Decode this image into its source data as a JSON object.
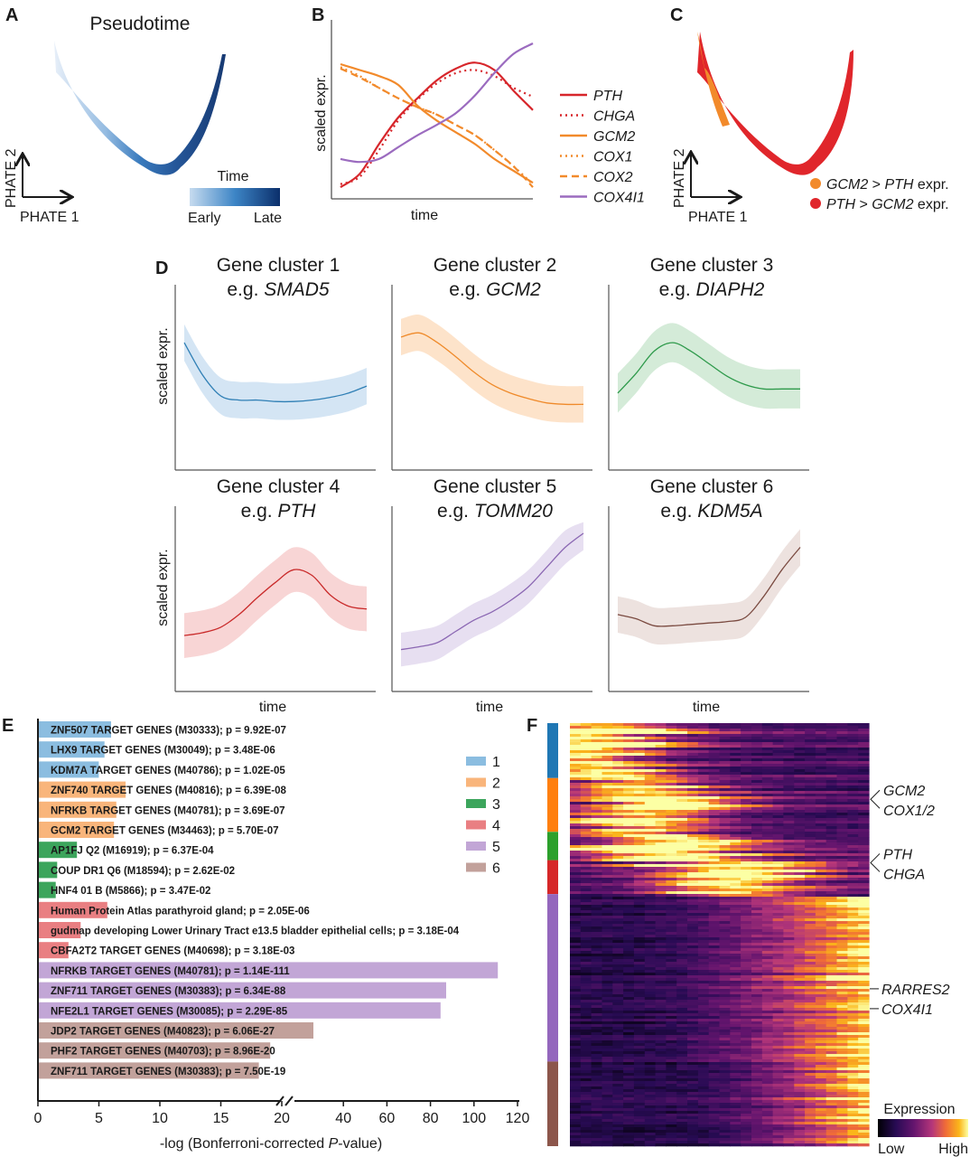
{
  "panels": {
    "A": "A",
    "B": "B",
    "C": "C",
    "D": "D",
    "E": "E",
    "F": "F"
  },
  "chart_data": [
    {
      "id": "A",
      "type": "scatter",
      "title": "Pseudotime",
      "xlabel": "PHATE 1",
      "ylabel": "PHATE 2",
      "colorbar": {
        "title": "Time",
        "low_label": "Early",
        "high_label": "Late",
        "colors": [
          "#c6dbef",
          "#4a8fcf",
          "#08306b"
        ]
      },
      "description": "U-shaped PHATE embedding of cells colored by pseudotime (early left arm, late right arm)"
    },
    {
      "id": "B",
      "type": "line",
      "xlabel": "time",
      "ylabel": "scaled expr.",
      "x": [
        0,
        0.1,
        0.2,
        0.3,
        0.4,
        0.5,
        0.6,
        0.7,
        0.8,
        0.9,
        1.0
      ],
      "ylim": [
        0,
        1
      ],
      "series": [
        {
          "name": "PTH",
          "style": "solid",
          "color": "#d7262b",
          "values": [
            0.03,
            0.12,
            0.32,
            0.5,
            0.63,
            0.75,
            0.83,
            0.87,
            0.82,
            0.68,
            0.55
          ]
        },
        {
          "name": "CHGA",
          "style": "dotted",
          "color": "#d7262b",
          "values": [
            0.05,
            0.1,
            0.28,
            0.48,
            0.62,
            0.73,
            0.8,
            0.82,
            0.78,
            0.7,
            0.64
          ]
        },
        {
          "name": "GCM2",
          "style": "solid",
          "color": "#f28a2b",
          "values": [
            0.86,
            0.82,
            0.78,
            0.72,
            0.58,
            0.48,
            0.4,
            0.32,
            0.22,
            0.14,
            0.06
          ]
        },
        {
          "name": "COX1",
          "style": "dotted",
          "color": "#f28a2b",
          "values": [
            0.84,
            0.78,
            0.7,
            0.63,
            0.57,
            0.52,
            0.45,
            0.38,
            0.28,
            0.17,
            0.05
          ]
        },
        {
          "name": "COX2",
          "style": "dashed",
          "color": "#f28a2b",
          "values": [
            0.83,
            0.77,
            0.7,
            0.63,
            0.57,
            0.52,
            0.45,
            0.38,
            0.28,
            0.17,
            0.03
          ]
        },
        {
          "name": "COX4I1",
          "style": "solid",
          "color": "#9b6bbf",
          "values": [
            0.22,
            0.2,
            0.22,
            0.3,
            0.38,
            0.45,
            0.53,
            0.65,
            0.8,
            0.93,
            1.0
          ]
        }
      ],
      "legend": "right"
    },
    {
      "id": "C",
      "type": "scatter",
      "xlabel": "PHATE 1",
      "ylabel": "PHATE 2",
      "legend": [
        {
          "pre": "GCM2",
          "mid": " > ",
          "gene2": "PTH",
          "post": " expr.",
          "color": "#f28a2b"
        },
        {
          "pre": "PTH",
          "mid": " > ",
          "gene2": "GCM2",
          "post": " expr.",
          "color": "#e0262b"
        }
      ]
    },
    {
      "id": "D",
      "type": "line",
      "xlabel": "time",
      "ylabel": "scaled expr.",
      "x": [
        0,
        0.1,
        0.2,
        0.3,
        0.4,
        0.5,
        0.6,
        0.7,
        0.8,
        0.9,
        1.0
      ],
      "ylim": [
        0,
        1
      ],
      "clusters": [
        {
          "title": "Gene cluster 1",
          "example": "SMAD5",
          "color": "#2f7fb5",
          "fill": "#cfe2f3",
          "values": [
            0.78,
            0.55,
            0.4,
            0.37,
            0.37,
            0.36,
            0.36,
            0.37,
            0.39,
            0.42,
            0.47
          ],
          "band": 0.13
        },
        {
          "title": "Gene cluster 2",
          "example": "GCM2",
          "color": "#ef8a2a",
          "fill": "#fde0c4",
          "values": [
            0.82,
            0.85,
            0.78,
            0.68,
            0.57,
            0.48,
            0.42,
            0.38,
            0.35,
            0.34,
            0.34
          ],
          "band": 0.13
        },
        {
          "title": "Gene cluster 3",
          "example": "DIAPH2",
          "color": "#2e9a4b",
          "fill": "#cfe9d4",
          "values": [
            0.42,
            0.56,
            0.72,
            0.78,
            0.72,
            0.63,
            0.54,
            0.48,
            0.45,
            0.45,
            0.45
          ],
          "band": 0.14
        },
        {
          "title": "Gene cluster 4",
          "example": "PTH",
          "color": "#c92a2a",
          "fill": "#f7d0d0",
          "values": [
            0.27,
            0.29,
            0.33,
            0.42,
            0.54,
            0.65,
            0.74,
            0.7,
            0.56,
            0.48,
            0.46
          ],
          "band": 0.16
        },
        {
          "title": "Gene cluster 5",
          "example": "TOMM20",
          "color": "#8b67b3",
          "fill": "#e4dcef",
          "values": [
            0.17,
            0.19,
            0.22,
            0.3,
            0.38,
            0.44,
            0.52,
            0.62,
            0.76,
            0.9,
            1.0
          ],
          "band": 0.12
        },
        {
          "title": "Gene cluster 6",
          "example": "KDM5A",
          "color": "#7a4a40",
          "fill": "#ebdfdc",
          "values": [
            0.42,
            0.39,
            0.34,
            0.34,
            0.35,
            0.36,
            0.37,
            0.4,
            0.55,
            0.74,
            0.9
          ],
          "band": 0.13
        }
      ]
    },
    {
      "id": "E",
      "type": "bar",
      "orientation": "horizontal",
      "xlabel_pre": "-log (Bonferroni-corrected ",
      "xlabel_ital": "P",
      "xlabel_post": "-value)",
      "axis_break": [
        20,
        20
      ],
      "ticks_left": [
        0,
        5,
        10,
        15,
        20
      ],
      "ticks_right": [
        40,
        60,
        80,
        100,
        120
      ],
      "xlim": [
        0,
        120
      ],
      "legend": [
        {
          "label": "1",
          "color": "#8bbde0"
        },
        {
          "label": "2",
          "color": "#f9b57b"
        },
        {
          "label": "3",
          "color": "#3ca55c"
        },
        {
          "label": "4",
          "color": "#e97f82"
        },
        {
          "label": "5",
          "color": "#c2a6d6"
        },
        {
          "label": "6",
          "color": "#c2a19b"
        }
      ],
      "bars": [
        {
          "label": "ZNF507 TARGET GENES (M30333); p = 9.92E-07",
          "cluster": 1,
          "value": 6.0
        },
        {
          "label": "LHX9 TARGET GENES (M30049); p = 3.48E-06",
          "cluster": 1,
          "value": 5.46
        },
        {
          "label": "KDM7A TARGET GENES (M40786); p = 1.02E-05",
          "cluster": 1,
          "value": 4.99
        },
        {
          "label": "ZNF740 TARGET GENES (M40816); p = 6.39E-08",
          "cluster": 2,
          "value": 7.19
        },
        {
          "label": "NFRKB TARGET GENES (M40781); p = 3.69E-07",
          "cluster": 2,
          "value": 6.43
        },
        {
          "label": "GCM2 TARGET GENES (M34463); p = 5.70E-07",
          "cluster": 2,
          "value": 6.24
        },
        {
          "label": "AP1FJ Q2 (M16919); p = 6.37E-04",
          "cluster": 3,
          "value": 3.2
        },
        {
          "label": "COUP DR1 Q6 (M18594); p = 2.62E-02",
          "cluster": 3,
          "value": 1.58
        },
        {
          "label": "HNF4 01 B (M5866); p = 3.47E-02",
          "cluster": 3,
          "value": 1.46
        },
        {
          "label": "Human Protein Atlas parathyroid gland; p = 2.05E-06",
          "cluster": 4,
          "value": 5.69
        },
        {
          "label": "gudmap developing Lower Urinary Tract e13.5 bladder epithelial cells; p = 3.18E-04",
          "cluster": 4,
          "value": 3.5
        },
        {
          "label": "CBFA2T2 TARGET GENES (M40698); p = 3.18E-03",
          "cluster": 4,
          "value": 2.5
        },
        {
          "label": "NFRKB TARGET GENES (M40781); p = 1.14E-111",
          "cluster": 5,
          "value": 110.94
        },
        {
          "label": "ZNF711 TARGET GENES (M30383); p = 6.34E-88",
          "cluster": 5,
          "value": 87.2
        },
        {
          "label": "NFE2L1 TARGET GENES (M30085); p = 2.29E-85",
          "cluster": 5,
          "value": 84.64
        },
        {
          "label": "JDP2 TARGET GENES (M40823); p = 6.06E-27",
          "cluster": 6,
          "value": 26.22
        },
        {
          "label": "PHF2 TARGET GENES (M40703); p = 8.96E-20",
          "cluster": 6,
          "value": 19.05
        },
        {
          "label": "ZNF711 TARGET GENES (M30383); p = 7.50E-19",
          "cluster": 6,
          "value": 18.12
        }
      ]
    },
    {
      "id": "F",
      "type": "heatmap",
      "xlabel": "",
      "colorbar": {
        "title": "Expression",
        "low_label": "Low",
        "high_label": "High"
      },
      "cluster_bar": [
        {
          "cluster": 1,
          "color": "#1f77b4",
          "fraction": 0.13
        },
        {
          "cluster": 2,
          "color": "#ff7f0e",
          "fraction": 0.127
        },
        {
          "cluster": 3,
          "color": "#2ca02c",
          "fraction": 0.067
        },
        {
          "cluster": 4,
          "color": "#d62728",
          "fraction": 0.08
        },
        {
          "cluster": 5,
          "color": "#9467bd",
          "fraction": 0.396
        },
        {
          "cluster": 6,
          "color": "#8c564b",
          "fraction": 0.2
        }
      ],
      "cluster_peak_time": [
        0.05,
        0.25,
        0.35,
        0.55,
        0.95,
        0.9
      ],
      "annotations": [
        {
          "genes": [
            "GCM2",
            "COX1/2"
          ],
          "row_fraction": 0.18
        },
        {
          "genes": [
            "PTH",
            "CHGA"
          ],
          "row_fraction": 0.33
        },
        {
          "genes": [
            "RARRES2"
          ],
          "row_fraction": 0.628
        },
        {
          "genes": [
            "COX4I1"
          ],
          "row_fraction": 0.675
        }
      ]
    }
  ]
}
